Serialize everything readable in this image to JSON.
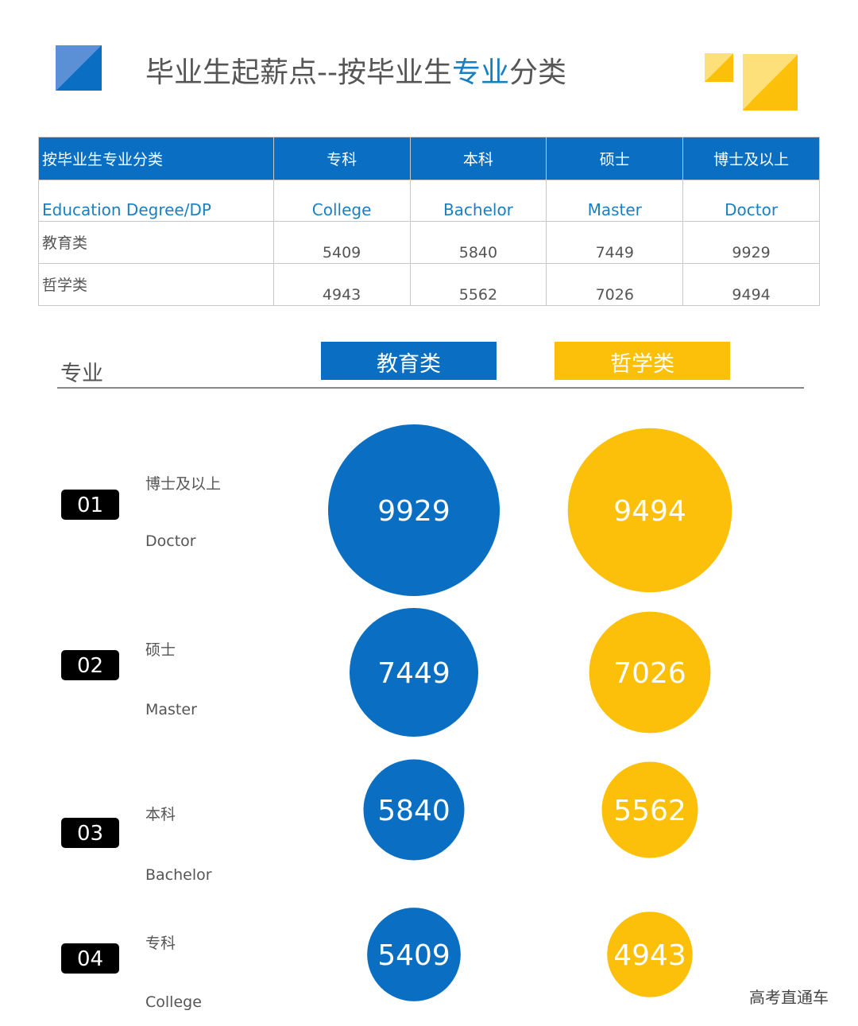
{
  "title": {
    "part1": "毕业生起薪点--按毕业生",
    "highlight": "专业",
    "part2": "分类"
  },
  "colors": {
    "blue": "#0a6fc2",
    "yellow": "#fcc00a"
  },
  "table": {
    "header": [
      "按毕业生专业分类",
      "专科",
      "本科",
      "硕士",
      "博士及以上"
    ],
    "en_row": [
      "Education  Degree/DP",
      "College",
      "Bachelor",
      "Master",
      "Doctor"
    ],
    "rows": [
      {
        "label": "教育类",
        "values": [
          "5409",
          "5840",
          "7449",
          "9929"
        ]
      },
      {
        "label": "哲学类",
        "values": [
          "4943",
          "5562",
          "7026",
          "9494"
        ]
      }
    ]
  },
  "section_label": "专业",
  "chart_data": {
    "type": "bubble",
    "legend": [
      "教育类",
      "哲学类"
    ],
    "categories": [
      {
        "num": "01",
        "cn": "博士及以上",
        "en": "Doctor"
      },
      {
        "num": "02",
        "cn": "硕士",
        "en": "Master"
      },
      {
        "num": "03",
        "cn": "本科",
        "en": "Bachelor"
      },
      {
        "num": "04",
        "cn": "专科",
        "en": "College"
      }
    ],
    "series": [
      {
        "name": "教育类",
        "values": [
          9929,
          7449,
          5840,
          5409
        ]
      },
      {
        "name": "哲学类",
        "values": [
          9494,
          7026,
          5562,
          4943
        ]
      }
    ]
  },
  "watermark": "高考直通车"
}
